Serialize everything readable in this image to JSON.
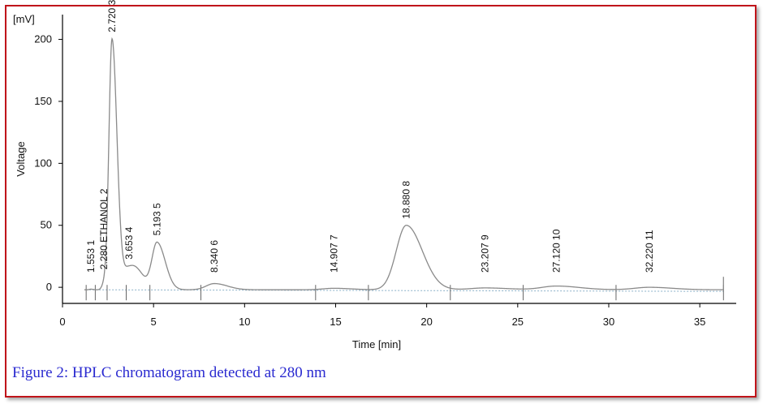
{
  "caption": "Figure 2: HPLC chromatogram detected at 280 nm",
  "colors": {
    "border": "#c0141a",
    "caption": "#2a2ad0",
    "trace": "#8a8a8a",
    "baseline": "#8ab0c8"
  },
  "chart_data": {
    "type": "line",
    "title": "",
    "xlabel": "Time [min]",
    "ylabel": "Voltage",
    "yunit": "[mV]",
    "xlim": [
      0,
      37
    ],
    "ylim": [
      -13,
      220
    ],
    "xticks": [
      0,
      5,
      10,
      15,
      20,
      25,
      30,
      35
    ],
    "yticks": [
      0,
      50,
      100,
      150,
      200
    ],
    "grid": false,
    "baseline_y": -2,
    "peaks": [
      {
        "number": "1",
        "time": "1.553",
        "t": 1.553,
        "height": 0.5,
        "width": 0.08
      },
      {
        "number": "2",
        "time": "2.280",
        "name": "ETHANOL",
        "t": 2.28,
        "height": 4,
        "width": 0.12
      },
      {
        "number": "3",
        "time": "2.720",
        "t": 2.72,
        "height": 202,
        "width": 0.17
      },
      {
        "number": "4",
        "time": "3.653",
        "t": 3.653,
        "height": 16,
        "width": 0.32
      },
      {
        "number": "5",
        "time": "5.193",
        "t": 5.193,
        "height": 38,
        "width": 0.28
      },
      {
        "number": "6",
        "time": "8.340",
        "t": 8.34,
        "height": 5,
        "width": 0.45
      },
      {
        "number": "7",
        "time": "14.907",
        "t": 14.907,
        "height": 1.2,
        "width": 0.6
      },
      {
        "number": "8",
        "time": "18.880",
        "t": 18.88,
        "height": 52,
        "width": 0.55
      },
      {
        "number": "9",
        "time": "23.207",
        "t": 23.207,
        "height": 1.5,
        "width": 0.8
      },
      {
        "number": "10",
        "time": "27.120",
        "t": 27.12,
        "height": 3,
        "width": 0.8
      },
      {
        "number": "11",
        "time": "32.220",
        "t": 32.22,
        "height": 2,
        "width": 0.8
      }
    ],
    "integration_markers": [
      1.3,
      1.8,
      2.45,
      3.5,
      4.8,
      7.6,
      13.9,
      16.8,
      21.3,
      25.3,
      30.4,
      36.3
    ]
  }
}
